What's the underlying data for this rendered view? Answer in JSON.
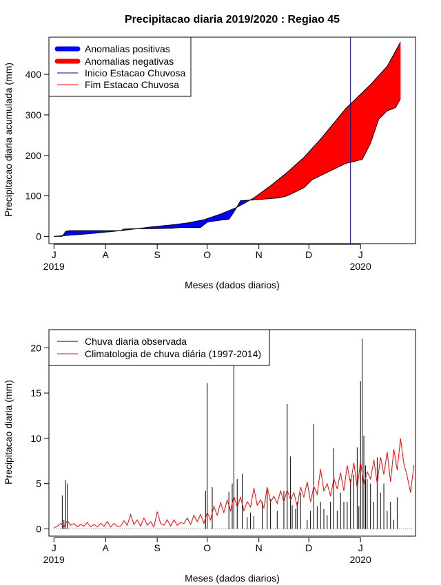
{
  "title": "Precipitacao diaria 2019/2020 : Regiao 45",
  "colors": {
    "positive_fill": "#0000ff",
    "negative_fill": "#ff0000",
    "start_line": "#00008b",
    "end_line": "#ff0000",
    "obs_bars": "#000000",
    "clim_line": "#ff0000"
  },
  "chart_data": [
    {
      "type": "area",
      "name": "accumulated",
      "title": "Precipitacao diaria 2019/2020 : Regiao 45",
      "xlabel": "Meses (dados diarios)",
      "ylabel": "Precipitacao diaria acumulada (mm)",
      "x_unit": "days since 2019-07-01",
      "xlim": [
        -3,
        217
      ],
      "ylim": [
        -18,
        492
      ],
      "yticks": [
        0,
        100,
        200,
        300,
        400
      ],
      "month_ticks": [
        {
          "day": 0,
          "label": "J",
          "year": "2019"
        },
        {
          "day": 31,
          "label": "A",
          "year": ""
        },
        {
          "day": 62,
          "label": "S",
          "year": ""
        },
        {
          "day": 92,
          "label": "O",
          "year": ""
        },
        {
          "day": 123,
          "label": "N",
          "year": ""
        },
        {
          "day": 153,
          "label": "D",
          "year": ""
        },
        {
          "day": 184,
          "label": "J",
          "year": "2020"
        }
      ],
      "observed_cumulative": {
        "x": [
          0,
          5,
          7,
          9,
          20,
          40,
          42,
          48,
          60,
          71,
          76,
          88,
          92,
          95,
          100,
          105,
          108,
          112,
          120,
          135,
          140,
          145,
          150,
          155,
          160,
          175,
          185,
          190,
          195,
          200,
          205,
          208
        ],
        "y": [
          0,
          0,
          12,
          14,
          14,
          14,
          18,
          19,
          19,
          20,
          22,
          22,
          35,
          37,
          40,
          42,
          60,
          88,
          90,
          95,
          100,
          110,
          120,
          140,
          150,
          180,
          190,
          230,
          290,
          310,
          318,
          340
        ]
      },
      "climatology_cumulative": {
        "x": [
          0,
          10,
          20,
          30,
          40,
          50,
          60,
          70,
          80,
          90,
          100,
          110,
          120,
          130,
          140,
          150,
          160,
          170,
          175,
          180,
          190,
          200,
          208
        ],
        "y": [
          0,
          3,
          6,
          10,
          14,
          19,
          24,
          28,
          33,
          41,
          55,
          72,
          95,
          125,
          158,
          195,
          240,
          290,
          315,
          335,
          375,
          420,
          480
        ]
      },
      "rainy_season_start_day": 178,
      "legend": {
        "position": "top-left",
        "entries": [
          "Anomalias positivas",
          "Anomalias negativas",
          "Inicio Estacao Chuvosa",
          "Fim Estacao Chuvosa"
        ]
      }
    },
    {
      "type": "bar",
      "name": "daily",
      "title": "",
      "xlabel": "Meses (dados diarios)",
      "ylabel": "Precipitacao diaria (mm)",
      "x_unit": "days since 2019-07-01",
      "xlim": [
        -3,
        217
      ],
      "ylim": [
        -0.8,
        22
      ],
      "yticks": [
        0,
        5,
        10,
        15,
        20
      ],
      "month_ticks": [
        {
          "day": 0,
          "label": "J",
          "year": "2019"
        },
        {
          "day": 31,
          "label": "A",
          "year": ""
        },
        {
          "day": 62,
          "label": "S",
          "year": ""
        },
        {
          "day": 92,
          "label": "O",
          "year": ""
        },
        {
          "day": 123,
          "label": "N",
          "year": ""
        },
        {
          "day": 153,
          "label": "D",
          "year": ""
        },
        {
          "day": 184,
          "label": "J",
          "year": "2020"
        }
      ],
      "observed_bars": {
        "x": [
          5,
          6,
          7,
          8,
          91,
          92,
          95,
          105,
          107,
          108,
          110,
          113,
          116,
          118,
          120,
          125,
          128,
          130,
          134,
          138,
          140,
          142,
          143,
          145,
          146,
          148,
          152,
          154,
          156,
          158,
          160,
          162,
          164,
          166,
          168,
          170,
          172,
          174,
          176,
          178,
          180,
          182,
          183,
          184,
          185,
          186,
          187,
          188,
          190,
          192,
          194,
          196,
          198,
          200,
          202,
          204,
          206
        ],
        "y": [
          3.7,
          1.0,
          5.4,
          5.0,
          4.2,
          16.1,
          4.6,
          4.1,
          5.0,
          18.5,
          5.5,
          6.1,
          1.3,
          1.8,
          1.4,
          3.0,
          4.5,
          3.3,
          2.0,
          4.2,
          13.8,
          8.0,
          2.6,
          2.2,
          3.0,
          4.0,
          1.0,
          2.0,
          11.6,
          2.5,
          3.0,
          2.2,
          1.5,
          3.0,
          8.9,
          2.0,
          4.0,
          3.0,
          3.0,
          5.5,
          6.0,
          9.0,
          2.5,
          16.3,
          21.0,
          10.3,
          7.0,
          5.5,
          5.0,
          3.0,
          7.9,
          4.0,
          5.0,
          2.0,
          3.0,
          1.0,
          3.5
        ]
      },
      "climatology_line": {
        "x": [
          0,
          2,
          4,
          6,
          8,
          10,
          12,
          14,
          16,
          18,
          20,
          22,
          24,
          26,
          28,
          30,
          32,
          34,
          36,
          38,
          40,
          42,
          44,
          46,
          48,
          50,
          52,
          54,
          56,
          58,
          60,
          62,
          64,
          66,
          68,
          70,
          72,
          74,
          76,
          78,
          80,
          82,
          84,
          86,
          88,
          90,
          92,
          94,
          96,
          98,
          100,
          102,
          104,
          106,
          108,
          110,
          112,
          114,
          116,
          118,
          120,
          122,
          124,
          126,
          128,
          130,
          132,
          134,
          136,
          138,
          140,
          142,
          144,
          146,
          148,
          150,
          152,
          154,
          156,
          158,
          160,
          162,
          164,
          166,
          168,
          170,
          172,
          174,
          176,
          178,
          180,
          182,
          184,
          186,
          188,
          190,
          192,
          194,
          196,
          198,
          200,
          202,
          204,
          206,
          208,
          210,
          212,
          214,
          216
        ],
        "y": [
          0.1,
          0.3,
          0.6,
          0.2,
          0.9,
          0.4,
          0.6,
          0.2,
          0.5,
          0.3,
          0.7,
          0.2,
          0.5,
          0.2,
          0.6,
          0.3,
          0.8,
          0.2,
          0.6,
          0.3,
          0.3,
          0.9,
          0.4,
          1.6,
          0.5,
          1.0,
          0.3,
          1.2,
          0.4,
          0.8,
          0.2,
          1.9,
          0.6,
          0.4,
          1.0,
          0.3,
          1.0,
          0.4,
          0.7,
          0.6,
          1.2,
          0.5,
          1.5,
          0.8,
          1.6,
          0.6,
          1.8,
          1.0,
          2.5,
          1.5,
          2.9,
          1.8,
          3.2,
          2.0,
          3.6,
          2.4,
          3.5,
          2.0,
          3.0,
          2.4,
          4.5,
          2.6,
          3.2,
          2.3,
          4.6,
          3.0,
          3.6,
          2.8,
          4.2,
          3.0,
          4.3,
          3.2,
          4.0,
          2.5,
          4.6,
          3.5,
          5.2,
          3.0,
          4.7,
          3.8,
          6.6,
          4.2,
          5.0,
          3.6,
          5.6,
          4.4,
          6.2,
          4.2,
          7.0,
          5.0,
          7.3,
          4.5,
          7.4,
          4.8,
          6.3,
          5.5,
          7.6,
          5.0,
          7.9,
          6.0,
          8.5,
          5.2,
          8.8,
          6.5,
          10.0,
          7.2,
          5.8,
          4.0,
          7.0
        ]
      },
      "legend": {
        "position": "top-left",
        "entries": [
          "Chuva diaria observada",
          "Climatologia de chuva diária (1997-2014)"
        ]
      }
    }
  ]
}
